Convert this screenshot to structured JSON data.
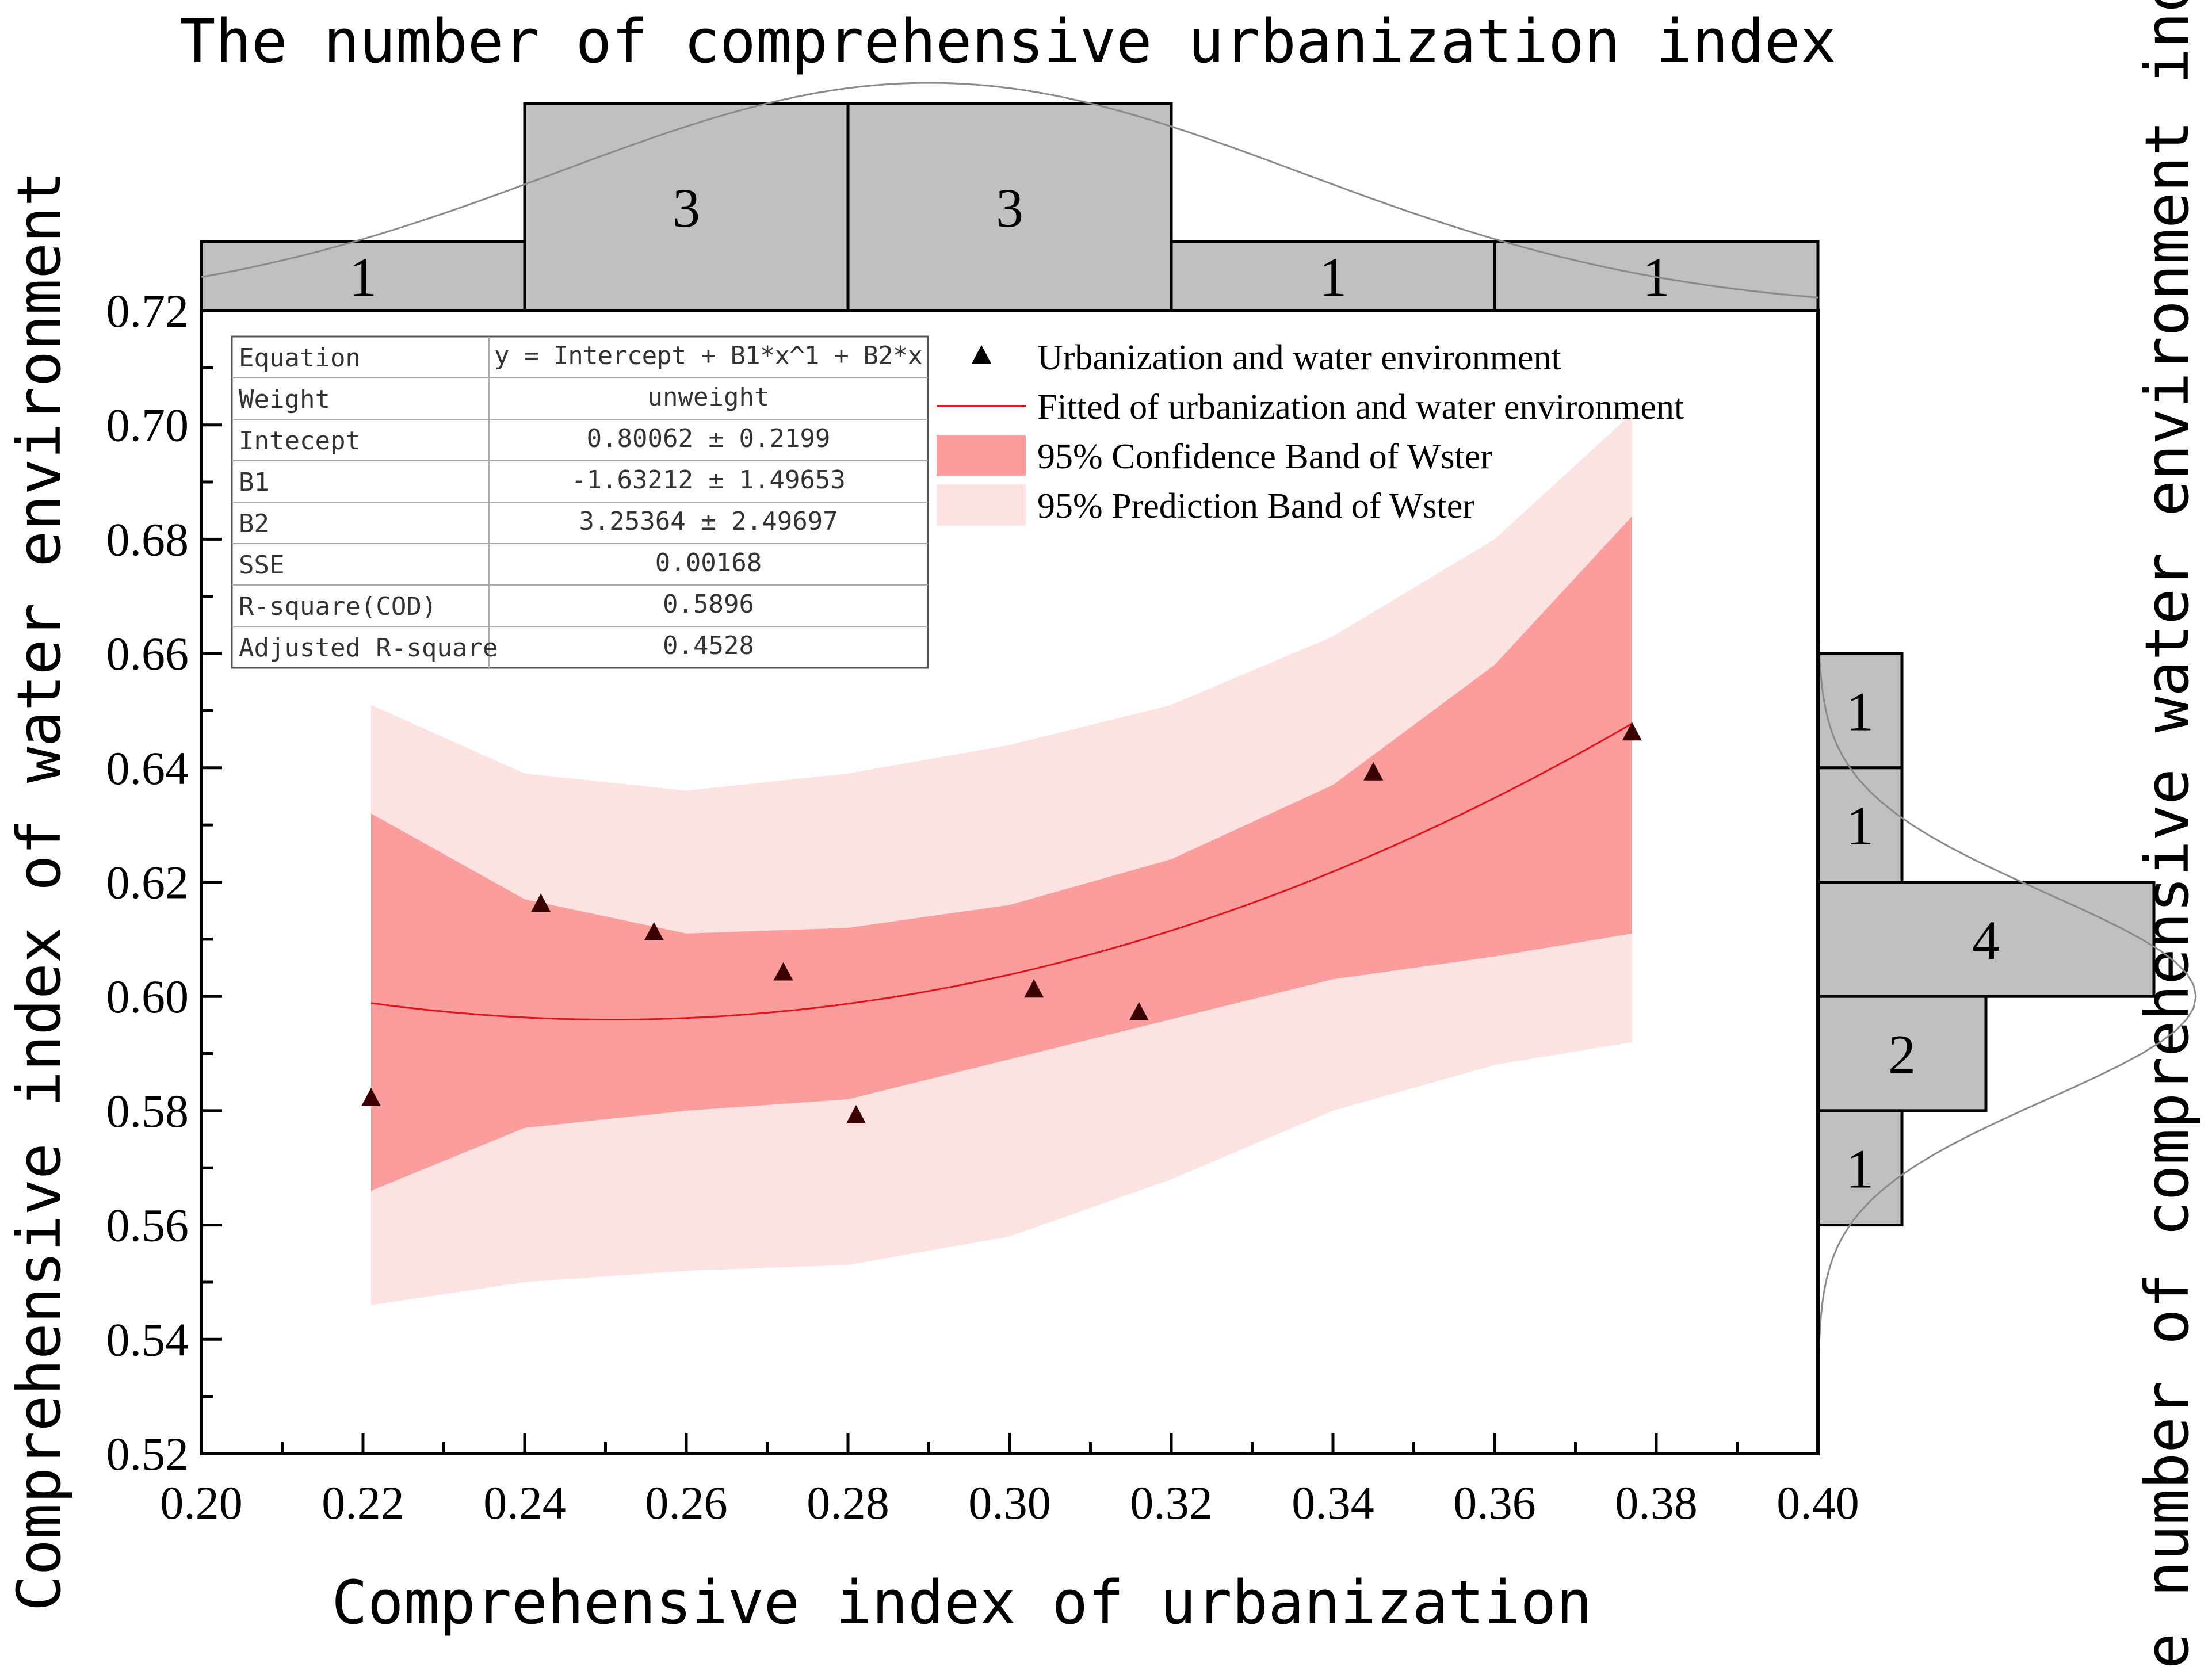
{
  "chart_data": {
    "type": "scatter",
    "xlabel": "Comprehensive index of urbanization",
    "ylabel": "Comprehensive index of water environment",
    "top_hist_title": "The number of comprehensive urbanization index",
    "right_hist_title": "The number of comprehensive water environment index",
    "xlim": [
      0.2,
      0.4
    ],
    "ylim": [
      0.52,
      0.72
    ],
    "x_ticks": [
      "0.20",
      "0.22",
      "0.24",
      "0.26",
      "0.28",
      "0.30",
      "0.32",
      "0.34",
      "0.36",
      "0.38",
      "0.40"
    ],
    "y_ticks": [
      "0.52",
      "0.54",
      "0.56",
      "0.58",
      "0.60",
      "0.62",
      "0.64",
      "0.66",
      "0.68",
      "0.70",
      "0.72"
    ],
    "points": {
      "x": [
        0.221,
        0.242,
        0.256,
        0.272,
        0.281,
        0.303,
        0.316,
        0.345,
        0.377
      ],
      "y": [
        0.582,
        0.616,
        0.611,
        0.604,
        0.579,
        0.601,
        0.597,
        0.639,
        0.646
      ]
    },
    "fit": {
      "intercept": 0.80062,
      "b1": -1.63212,
      "b2": 3.25364
    },
    "bands": {
      "x": [
        0.221,
        0.24,
        0.26,
        0.28,
        0.3,
        0.32,
        0.34,
        0.36,
        0.377
      ],
      "conf_upper": [
        0.632,
        0.617,
        0.611,
        0.612,
        0.616,
        0.624,
        0.637,
        0.658,
        0.684
      ],
      "conf_lower": [
        0.566,
        0.577,
        0.58,
        0.582,
        0.589,
        0.596,
        0.603,
        0.607,
        0.611
      ],
      "pred_upper": [
        0.651,
        0.639,
        0.636,
        0.639,
        0.644,
        0.651,
        0.663,
        0.68,
        0.702
      ],
      "pred_lower": [
        0.546,
        0.55,
        0.552,
        0.553,
        0.558,
        0.568,
        0.58,
        0.588,
        0.592
      ]
    },
    "top_hist": {
      "bins": [
        [
          0.2,
          0.24
        ],
        [
          0.24,
          0.28
        ],
        [
          0.28,
          0.32
        ],
        [
          0.32,
          0.36
        ],
        [
          0.36,
          0.4
        ]
      ],
      "counts": [
        1,
        3,
        3,
        1,
        1
      ],
      "labels": [
        "1",
        "3",
        "3",
        "1",
        "1"
      ],
      "curve_mean": 0.29,
      "curve_sd": 0.046
    },
    "right_hist": {
      "bins": [
        [
          0.64,
          0.66
        ],
        [
          0.62,
          0.64
        ],
        [
          0.6,
          0.62
        ],
        [
          0.58,
          0.6
        ],
        [
          0.56,
          0.58
        ]
      ],
      "counts": [
        1,
        1,
        4,
        2,
        1
      ],
      "labels": [
        "1",
        "1",
        "4",
        "2",
        "1"
      ],
      "curve_mean": 0.6,
      "curve_sd": 0.018
    },
    "legend": {
      "items": [
        "Urbanization and water environment",
        "Fitted of urbanization and water environment",
        "95% Confidence Band of Wster",
        "95% Prediction Band of Wster"
      ],
      "placement": "top-right"
    },
    "stats_table": {
      "rows": [
        {
          "label": "Equation",
          "value": "y = Intercept + B1*x^1 + B2*x"
        },
        {
          "label": "Weight",
          "value": "unweight"
        },
        {
          "label": "Intecept",
          "value": "0.80062 ± 0.2199"
        },
        {
          "label": "B1",
          "value": "-1.63212 ± 1.49653"
        },
        {
          "label": "B2",
          "value": "3.25364 ± 2.49697"
        },
        {
          "label": "SSE",
          "value": "0.00168"
        },
        {
          "label": "R-square(COD)",
          "value": "0.5896"
        },
        {
          "label": "Adjusted R-square",
          "value": "0.4528"
        }
      ],
      "placement": "top-left"
    },
    "colors": {
      "confidence_band": "#fc9d9d",
      "prediction_band": "#fde2e2",
      "fit_line": "#e4141b",
      "marker": "#3a0000",
      "histogram_bar": "#c0c0c0",
      "axis": "#000000",
      "curve": "#8a8a8a"
    }
  }
}
